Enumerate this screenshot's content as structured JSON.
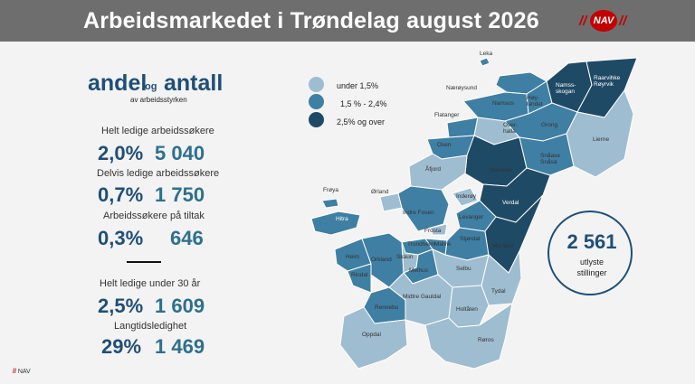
{
  "header": {
    "title": "Arbeidsmarkedet i Trøndelag august 2026",
    "logo_text": "NAV"
  },
  "summary": {
    "heading_andel": "andel",
    "heading_og": "og",
    "heading_antall": "antall",
    "subheading": "av arbeidsstyrken",
    "stats": [
      {
        "label": "Helt ledige arbeidssøkere",
        "percent": "2,0%",
        "count": "5 040"
      },
      {
        "label": "Delvis ledige arbeidssøkere",
        "percent": "0,7%",
        "count": "1 750"
      },
      {
        "label": "Arbeidssøkere på tiltak",
        "percent": "0,3%",
        "count": "646"
      },
      {
        "label": "Helt ledige under 30 år",
        "percent": "2,5%",
        "count": "1 609"
      },
      {
        "label": "Langtidsledighet",
        "percent": "29%",
        "count": "1 469"
      }
    ]
  },
  "legend": {
    "items": [
      {
        "label": "under 1,5%",
        "color": "#9fbdd0"
      },
      {
        "label": "1,5 % - 2,4%",
        "color": "#3f7fa3"
      },
      {
        "label": "2,5% og over",
        "color": "#1f4a66"
      }
    ]
  },
  "map": {
    "colors": {
      "low": "#9fbdd0",
      "mid": "#3f7fa3",
      "high": "#1f4a66"
    },
    "municipalities": {
      "leka": "Leka",
      "naeroysund": "Nærøysund",
      "namsos": "Namsos",
      "hoylandet": "Høy-\nlandet",
      "namsskogan": "Namss-\nskogan",
      "raarvihke": "Raarvihke\nRøyrvik",
      "flatanger": "Flatanger",
      "overhalla": "Over-\nhalla",
      "grong": "Grong",
      "lierne": "Lierne",
      "osen": "Osen",
      "steinkjer": "Steinkjer",
      "snaasa": "Snåase\nSnåsa",
      "afjord": "Åfjord",
      "froya": "Frøya",
      "orland": "Ørland",
      "inderoy": "Inderøy",
      "indre_fosen": "Indre Fosen",
      "verdal": "Verdal",
      "levanger": "Levanger",
      "hitra": "Hitra",
      "frosta": "Frosta",
      "trondheim": "Trondheim",
      "malvik": "Malvik",
      "stjordal": "Stjørdal",
      "meraker": "Meråker",
      "heim": "Heim",
      "orkland": "Orkland",
      "skaun": "Skaun",
      "melhus": "Melhus",
      "selbu": "Selbu",
      "rindal": "Rindal",
      "midtre_gauldal": "Midtre Gauldal",
      "tydal": "Tydal",
      "holtalen": "Holtålen",
      "rennebu": "Rennebu",
      "oppdal": "Oppdal",
      "roros": "Røros"
    }
  },
  "vacancies": {
    "count": "2 561",
    "label_line1": "utlyste",
    "label_line2": "stillinger"
  },
  "footer": {
    "slashes": "//",
    "text": "NAV"
  }
}
